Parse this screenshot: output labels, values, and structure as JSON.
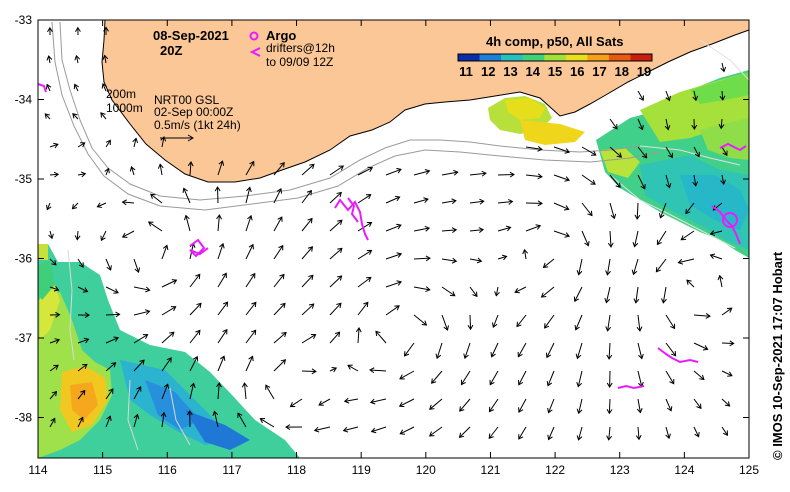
{
  "map": {
    "date": "08-Sep-2021",
    "hour": "20Z",
    "argo_label": "Argo",
    "drifters_line1": "drifters@12h",
    "drifters_line2": "to 09/09 12Z",
    "colorbar_title": "4h comp, p50, All Sats",
    "colorbar_ticks": [
      "11",
      "12",
      "13",
      "14",
      "15",
      "16",
      "17",
      "18",
      "19"
    ],
    "contour_200": "200m",
    "contour_1000": "1000m",
    "source_line1": "NRT00 GSL",
    "source_line2": "02-Sep 00:00Z",
    "scale_label": "0.5m/s (1kt 24h)",
    "credit": "© IMOS 10-Sep-2021 17:07 Hobart",
    "x_ticks": [
      "114",
      "115",
      "116",
      "117",
      "118",
      "119",
      "120",
      "121",
      "122",
      "123",
      "124",
      "125"
    ],
    "y_ticks": [
      "-33",
      "-34",
      "-35",
      "-36",
      "-37",
      "-38"
    ]
  },
  "colors": {
    "land": "#fbc796",
    "drifter": "#e81cff",
    "colormap": [
      "#0b2ea8",
      "#1f7fd8",
      "#27c0c0",
      "#3fd27a",
      "#9ee23a",
      "#e8e01a",
      "#f4a21a",
      "#e85a12",
      "#c81e10"
    ]
  }
}
